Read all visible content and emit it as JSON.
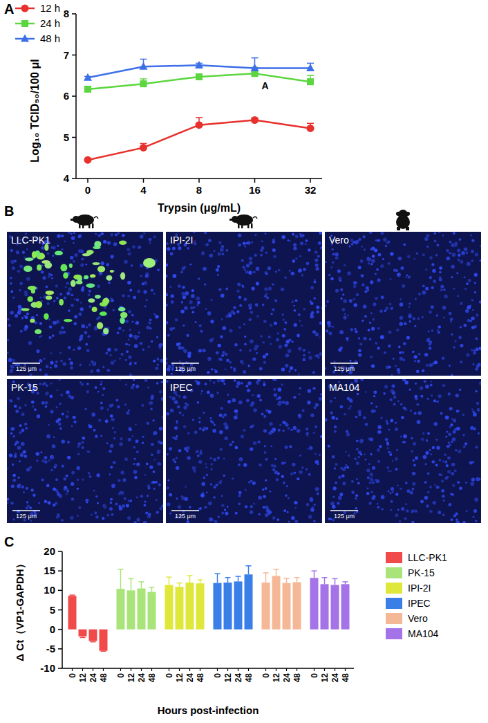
{
  "chart_data": [
    {
      "type": "line",
      "panel_label": "A",
      "x_label": "Trypsin (μg/mL)",
      "y_label": "Log₁₀ TCID₅₀/100 μl",
      "categories": [
        "0",
        "4",
        "8",
        "16",
        "32"
      ],
      "ylim": [
        4,
        8
      ],
      "yticks": [
        4,
        5,
        6,
        7,
        8
      ],
      "legend": "top-left",
      "marker": "circle",
      "series": [
        {
          "name": "12 h",
          "color": "#e8302c",
          "marker": "circle",
          "values": [
            4.45,
            4.75,
            5.3,
            5.42,
            5.22
          ],
          "errors": [
            0.03,
            0.1,
            0.18,
            0.05,
            0.12
          ]
        },
        {
          "name": "24 h",
          "color": "#5cd63f",
          "marker": "square",
          "values": [
            6.17,
            6.3,
            6.47,
            6.55,
            6.35
          ],
          "errors": [
            0.05,
            0.12,
            0.05,
            0.15,
            0.15
          ]
        },
        {
          "name": "48 h",
          "color": "#3c6fe8",
          "marker": "triangle",
          "values": [
            6.45,
            6.72,
            6.75,
            6.68,
            6.68
          ],
          "errors": [
            0.03,
            0.18,
            0.05,
            0.25,
            0.12
          ]
        }
      ],
      "annotations": [
        {
          "text": "A",
          "x": 16,
          "y": 6.3
        }
      ]
    },
    {
      "type": "bar",
      "panel_label": "C",
      "x_label": "Hours post-infection",
      "y_label": "Δ Ct（VP1-GAPDH）",
      "categories": [
        "0",
        "12",
        "24",
        "48"
      ],
      "ylim": [
        -10,
        20
      ],
      "yticks": [
        -10,
        -5,
        0,
        5,
        10,
        15,
        20
      ],
      "legend": "right",
      "series": [
        {
          "name": "LLC-PK1",
          "color": "#f04a4a",
          "values": [
            8.6,
            -1.8,
            -3.0,
            -5.5
          ],
          "errors": [
            0.2,
            0.3,
            0.2,
            0.1
          ]
        },
        {
          "name": "PK-15",
          "color": "#a8e47a",
          "values": [
            10.4,
            10.0,
            10.5,
            9.6
          ],
          "errors": [
            5.0,
            3.0,
            1.7,
            1.2
          ]
        },
        {
          "name": "IPI-2I",
          "color": "#dfe83a",
          "values": [
            11.4,
            10.9,
            12.0,
            11.8
          ],
          "errors": [
            2.0,
            1.0,
            1.8,
            0.9
          ]
        },
        {
          "name": "IPEC",
          "color": "#3a7fe8",
          "values": [
            11.9,
            12.0,
            12.3,
            14.1
          ],
          "errors": [
            2.4,
            1.3,
            1.3,
            2.2
          ]
        },
        {
          "name": "Vero",
          "color": "#f5b896",
          "values": [
            12.0,
            13.7,
            11.9,
            12.1
          ],
          "errors": [
            2.5,
            1.7,
            1.2,
            1.2
          ]
        },
        {
          "name": "MA104",
          "color": "#a473e8",
          "values": [
            13.2,
            11.6,
            11.4,
            11.6
          ],
          "errors": [
            1.8,
            1.7,
            1.6,
            0.6
          ]
        }
      ]
    }
  ],
  "image_panel": {
    "panel_label": "B",
    "images": [
      {
        "label": "LLC-PK1",
        "scale_bar": "125 μm",
        "gfp_positive": true
      },
      {
        "label": "IPI-2I",
        "scale_bar": "125 μm",
        "gfp_positive": false
      },
      {
        "label": "Vero",
        "scale_bar": "125 μm",
        "gfp_positive": false
      },
      {
        "label": "PK-15",
        "scale_bar": "125 μm",
        "gfp_positive": false
      },
      {
        "label": "IPEC",
        "scale_bar": "125 μm",
        "gfp_positive": false
      },
      {
        "label": "MA104",
        "scale_bar": "125 μm",
        "gfp_positive": false
      }
    ]
  }
}
